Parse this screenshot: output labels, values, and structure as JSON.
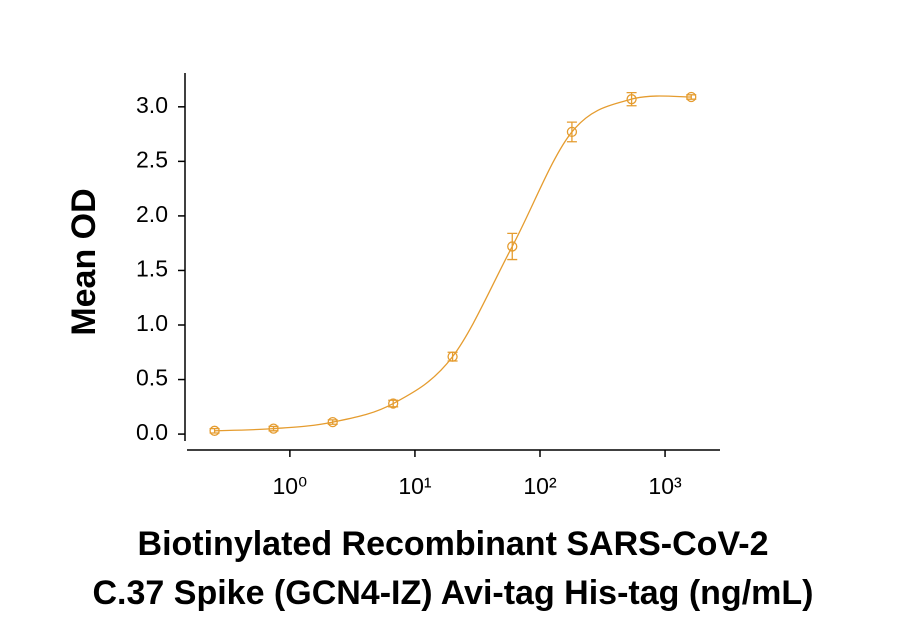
{
  "chart_data": {
    "type": "scatter",
    "ylabel": "Mean OD",
    "xlabel": [
      "Biotinylated Recombinant SARS-CoV-2",
      "C.37 Spike (GCN4-IZ) Avi-tag His-tag (ng/mL)"
    ],
    "x": [
      0.25,
      0.74,
      2.2,
      6.7,
      20,
      60,
      180,
      540,
      1620
    ],
    "series": [
      {
        "color": "#e59c2f",
        "values": [
          0.03,
          0.05,
          0.11,
          0.28,
          0.71,
          1.72,
          2.77,
          3.07,
          3.09
        ],
        "errors": [
          0.02,
          0.02,
          0.02,
          0.03,
          0.04,
          0.12,
          0.09,
          0.06,
          0.02
        ]
      }
    ],
    "xscale": "log",
    "xlim": [
      0.145,
      2750
    ],
    "ylim": [
      -0.1,
      3.31
    ],
    "xticks": [
      {
        "value": 1,
        "label": "10⁰"
      },
      {
        "value": 10,
        "label": "10¹"
      },
      {
        "value": 100,
        "label": "10²"
      },
      {
        "value": 1000,
        "label": "10³"
      }
    ],
    "yticks": [
      {
        "value": 0,
        "label": "0.0"
      },
      {
        "value": 0.5,
        "label": "0.5"
      },
      {
        "value": 1,
        "label": "1.0"
      },
      {
        "value": 1.5,
        "label": "1.5"
      },
      {
        "value": 2,
        "label": "2.0"
      },
      {
        "value": 2.5,
        "label": "2.5"
      },
      {
        "value": 3,
        "label": "3.0"
      }
    ],
    "fit_curve": true
  }
}
